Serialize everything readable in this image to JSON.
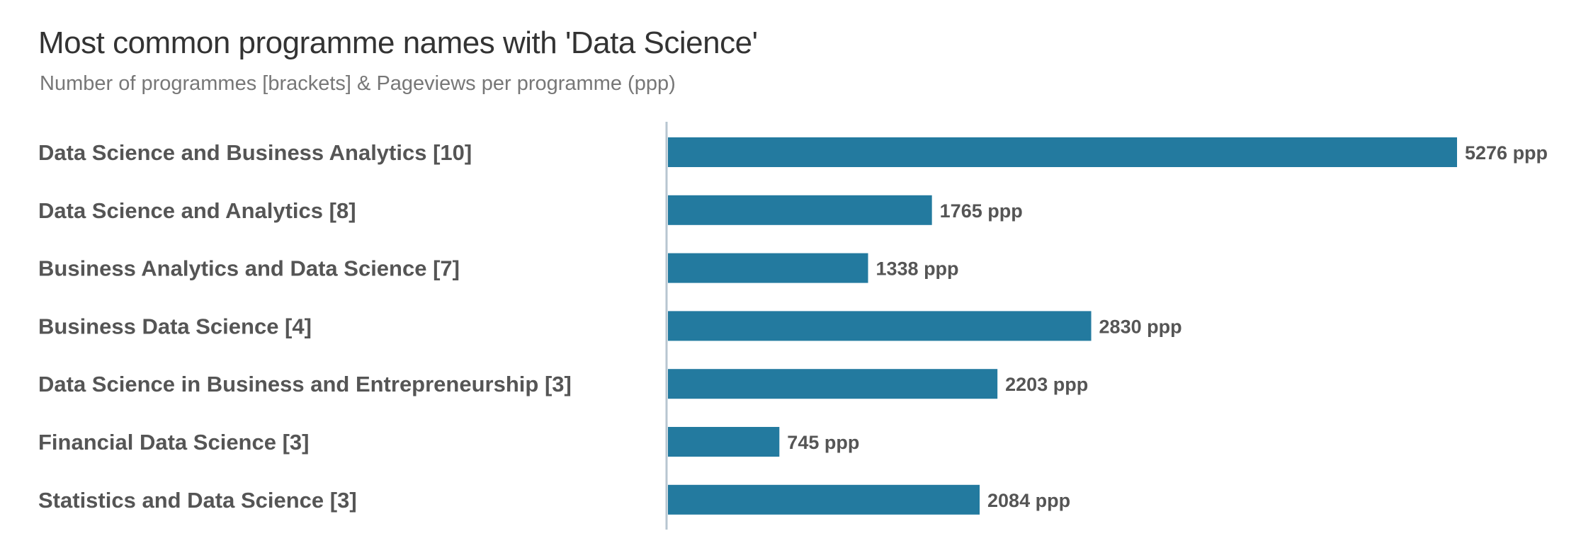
{
  "chart_data": {
    "type": "bar",
    "orientation": "horizontal",
    "title": "Most common programme names with 'Data Science'",
    "subtitle": "Number of programmes [brackets] & Pageviews per programme (ppp)",
    "categories": [
      "Data Science and Business Analytics [10]",
      "Data Science and Analytics [8]",
      "Business Analytics and Data Science [7]",
      "Business Data Science [4]",
      "Data Science in Business and Entrepreneurship [3]",
      "Financial Data Science [3]",
      "Statistics and Data Science [3]"
    ],
    "values": [
      5276,
      1765,
      1338,
      2830,
      2203,
      745,
      2084
    ],
    "value_labels": [
      "5276 ppp",
      "1765 ppp",
      "1338 ppp",
      "2830 ppp",
      "2203 ppp",
      "745 ppp",
      "2084 ppp"
    ],
    "xlim": [
      0,
      5276
    ],
    "grid": false,
    "bar_color": "#237a9f",
    "axis_color": "#b7c6d0"
  }
}
